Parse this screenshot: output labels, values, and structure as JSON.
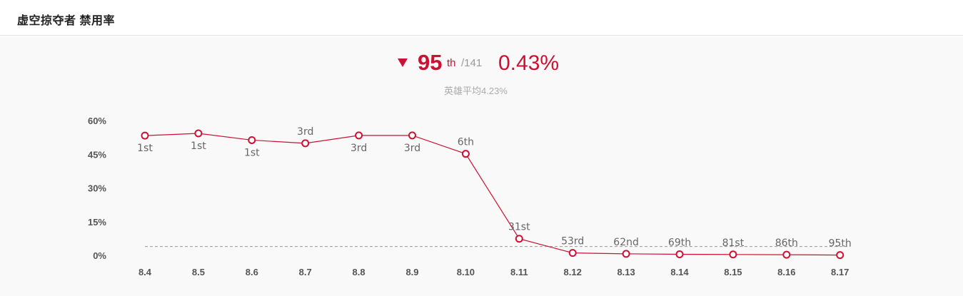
{
  "header": {
    "title": "虚空掠夺者 禁用率"
  },
  "summary": {
    "trend_icon": "triangle-down-icon",
    "rank": "95",
    "rank_suffix": "th",
    "rank_total": "/141",
    "rate": "0.43%",
    "average_text": "英雄平均4.23%"
  },
  "colors": {
    "accent": "#cc1133",
    "grid_dash": "#999999",
    "panel_bg": "#f9f9f9"
  },
  "chart_data": {
    "type": "line",
    "categories": [
      "8.4",
      "8.5",
      "8.6",
      "8.7",
      "8.8",
      "8.9",
      "8.10",
      "8.11",
      "8.12",
      "8.13",
      "8.14",
      "8.15",
      "8.16",
      "8.17"
    ],
    "values": [
      53.6,
      54.6,
      51.6,
      50.2,
      53.7,
      53.7,
      45.5,
      7.7,
      1.4,
      1.0,
      0.8,
      0.7,
      0.6,
      0.43
    ],
    "point_labels": [
      "1st",
      "1st",
      "1st",
      "3rd",
      "3rd",
      "3rd",
      "6th",
      "31st",
      "53rd",
      "62nd",
      "69th",
      "81st",
      "86th",
      "95th"
    ],
    "label_positions": [
      "below",
      "below",
      "below",
      "above",
      "below",
      "below",
      "above",
      "above",
      "above",
      "above",
      "above",
      "above",
      "above",
      "above"
    ],
    "y_ticks": [
      "0%",
      "15%",
      "30%",
      "45%",
      "60%"
    ],
    "y_tick_values": [
      0,
      15,
      30,
      45,
      60
    ],
    "ylim": [
      0,
      60
    ],
    "reference_line": 4.23,
    "grid": false,
    "legend": "none"
  }
}
